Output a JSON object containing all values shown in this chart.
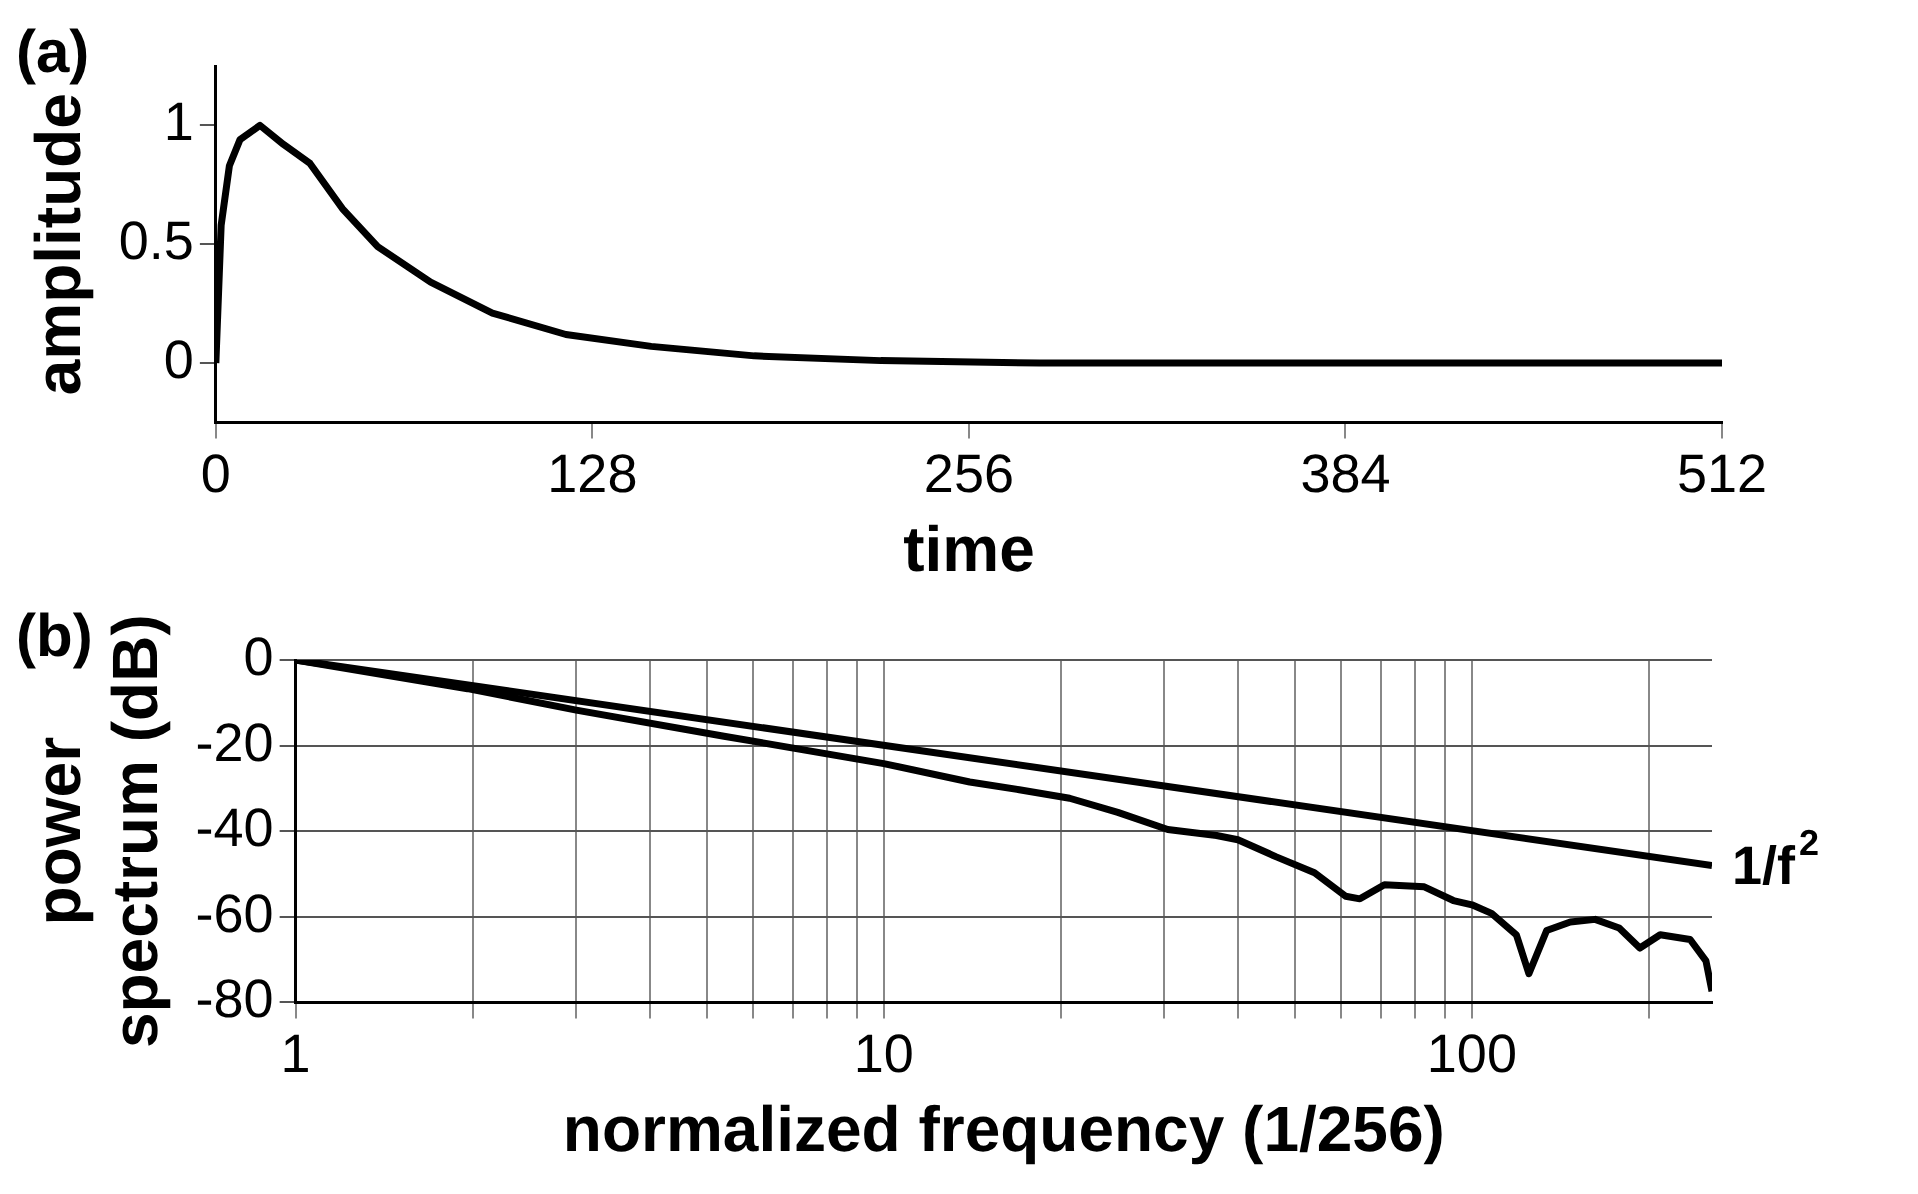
{
  "chart_data": [
    {
      "type": "line",
      "title": "(a)",
      "xlabel": "time",
      "ylabel": "amplitude",
      "xlim": [
        0,
        512
      ],
      "ylim": [
        -0.25,
        1.25
      ],
      "xticks": [
        0,
        128,
        256,
        384,
        512
      ],
      "yticks": [
        0,
        0.5,
        1
      ],
      "grid": false,
      "series": [
        {
          "color": "#000000",
          "x": [
            0,
            1.8,
            4.6,
            8.2,
            15,
            23,
            32,
            43,
            55,
            73,
            94,
            119,
            148,
            183,
            226,
            280,
            350,
            430,
            512
          ],
          "values": [
            0,
            0.58,
            0.83,
            0.94,
            1.0,
            0.92,
            0.84,
            0.65,
            0.49,
            0.34,
            0.21,
            0.12,
            0.07,
            0.03,
            0.01,
            0,
            0,
            0,
            0
          ]
        }
      ]
    },
    {
      "type": "line",
      "title": "(b)",
      "xlabel": "normalized frequency (1/256)",
      "ylabel": "power spectrum (dB)",
      "log": "x",
      "xlim": [
        1,
        256
      ],
      "ylim": [
        -80,
        0
      ],
      "xticks": [
        1,
        {
          "value": 2,
          "label": null
        },
        {
          "value": 3,
          "label": null
        },
        {
          "value": 4,
          "label": null
        },
        {
          "value": 5,
          "label": null
        },
        {
          "value": 6,
          "label": null
        },
        {
          "value": 7,
          "label": null
        },
        {
          "value": 8,
          "label": null
        },
        {
          "value": 9,
          "label": null
        },
        10,
        {
          "value": 20,
          "label": null
        },
        {
          "value": 30,
          "label": null
        },
        {
          "value": 40,
          "label": null
        },
        {
          "value": 50,
          "label": null
        },
        {
          "value": 60,
          "label": null
        },
        {
          "value": 70,
          "label": null
        },
        {
          "value": 80,
          "label": null
        },
        {
          "value": 90,
          "label": null
        },
        100,
        {
          "value": 200,
          "label": null
        }
      ],
      "yticks": [
        0,
        -20,
        -40,
        -60,
        -80
      ],
      "grid": true,
      "series": [
        {
          "name": "1/f$^{2}$",
          "color": "#000000",
          "x": [
            1,
            256
          ],
          "values": [
            0,
            -48
          ]
        },
        {
          "color": "#000000",
          "x": [
            1,
            1.96,
            3.0,
            5.35,
            10,
            14,
            17,
            20.7,
            25,
            30.4,
            36.8,
            40,
            46.5,
            54,
            61,
            64.5,
            71,
            83,
            93,
            100,
            108,
            119,
            125,
            134,
            147,
            162,
            178,
            193,
            209,
            235,
            250,
            256
          ],
          "values": [
            0,
            -6.7,
            -11.7,
            -17.8,
            -24.2,
            -28.5,
            -30.3,
            -32.3,
            -35.6,
            -39.6,
            -41,
            -42,
            -46,
            -49.7,
            -55.2,
            -55.8,
            -52.5,
            -53,
            -56.2,
            -57.2,
            -59.2,
            -64.2,
            -73.3,
            -63.2,
            -61.2,
            -60.6,
            -62.6,
            -67.3,
            -64.2,
            -65.3,
            -70.3,
            -77.4
          ]
        }
      ]
    }
  ]
}
